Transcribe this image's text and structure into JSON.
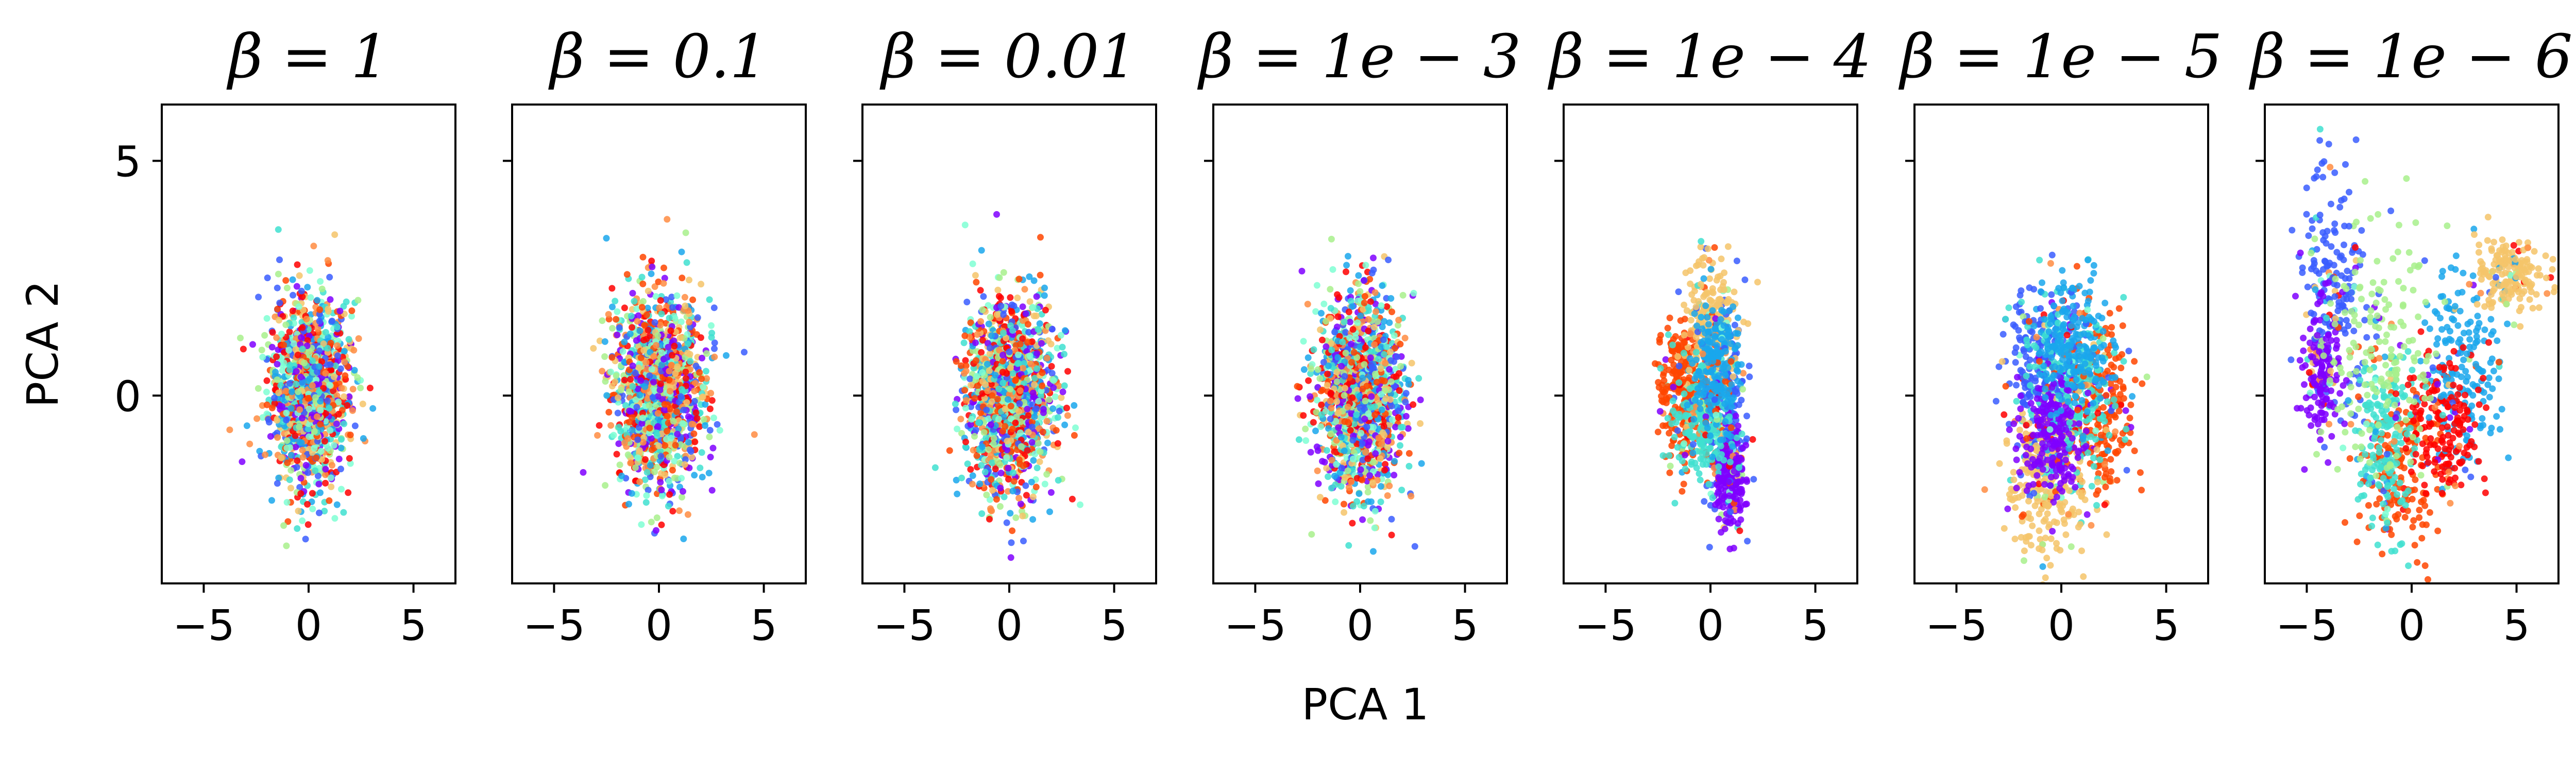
{
  "chart_data": {
    "type": "scatter",
    "xlabel": "PCA 1",
    "ylabel": "PCA 2",
    "xlim": [
      -7.0,
      7.0
    ],
    "ylim": [
      -4.0,
      6.2
    ],
    "xticks": [
      "−5",
      "0",
      "5"
    ],
    "xtick_values": [
      -5,
      0,
      5
    ],
    "yticks": [
      "5",
      "0"
    ],
    "ytick_values": [
      5,
      0
    ],
    "color_scheme": "rainbow",
    "color_palette": [
      "#7f00ff",
      "#3a5dff",
      "#1aa7ec",
      "#40e0d0",
      "#7fffd4",
      "#a8f08c",
      "#f5c46a",
      "#ff8c42",
      "#ff4500",
      "#ff0000"
    ],
    "panels": [
      {
        "title": "β = 1",
        "clusters": [
          {
            "color": "mixed",
            "cx": 0.0,
            "cy": 0.1,
            "sx": 1.1,
            "sy": 1.15
          }
        ]
      },
      {
        "title": "β = 0.1",
        "clusters": [
          {
            "color": "mixed",
            "cx": 0.0,
            "cy": 0.1,
            "sx": 1.25,
            "sy": 1.2
          }
        ]
      },
      {
        "title": "β = 0.01",
        "clusters": [
          {
            "color": "mixed",
            "cx": 0.0,
            "cy": 0.0,
            "sx": 1.25,
            "sy": 1.2
          }
        ]
      },
      {
        "title": "β = 1e − 3",
        "clusters": [
          {
            "color": "mixed",
            "cx": 0.0,
            "cy": 0.0,
            "sx": 1.2,
            "sy": 1.25
          }
        ]
      },
      {
        "title": "β = 1e − 4",
        "clusters": [
          {
            "color": "#ff4500",
            "cx": -1.3,
            "cy": 0.1,
            "sx": 0.75,
            "sy": 0.95
          },
          {
            "color": "#3a5dff",
            "cx": 0.7,
            "cy": -0.5,
            "sx": 0.55,
            "sy": 1.2
          },
          {
            "color": "#7f00ff",
            "cx": 0.9,
            "cy": -1.7,
            "sx": 0.4,
            "sy": 0.6
          },
          {
            "color": "#f5c46a",
            "cx": 0.0,
            "cy": 1.6,
            "sx": 0.8,
            "sy": 0.8
          },
          {
            "color": "#40e0d0",
            "cx": -0.4,
            "cy": -0.6,
            "sx": 0.8,
            "sy": 0.7
          },
          {
            "color": "#1aa7ec",
            "cx": 0.3,
            "cy": 0.6,
            "sx": 0.6,
            "sy": 0.8
          }
        ]
      },
      {
        "title": "β = 1e − 5",
        "clusters": [
          {
            "color": "#3a5dff",
            "cx": -0.8,
            "cy": 0.5,
            "sx": 1.0,
            "sy": 1.1
          },
          {
            "color": "#ff4500",
            "cx": 1.8,
            "cy": -0.3,
            "sx": 1.0,
            "sy": 1.0
          },
          {
            "color": "#40e0d0",
            "cx": 0.2,
            "cy": 0.0,
            "sx": 1.3,
            "sy": 1.2
          },
          {
            "color": "#f5c46a",
            "cx": -0.8,
            "cy": -2.0,
            "sx": 1.2,
            "sy": 0.9
          },
          {
            "color": "#7f00ff",
            "cx": -0.5,
            "cy": -0.8,
            "sx": 0.9,
            "sy": 0.8
          },
          {
            "color": "#1aa7ec",
            "cx": 0.5,
            "cy": 1.2,
            "sx": 1.0,
            "sy": 0.8
          }
        ]
      },
      {
        "title": "β = 1e − 6",
        "clusters": [
          {
            "color": "#3a5dff",
            "cx": -3.8,
            "cy": 2.3,
            "sx": 1.0,
            "sy": 1.6
          },
          {
            "color": "#7f00ff",
            "cx": -4.3,
            "cy": 0.6,
            "sx": 0.5,
            "sy": 0.9
          },
          {
            "color": "#ff4500",
            "cx": -0.6,
            "cy": -1.6,
            "sx": 1.1,
            "sy": 1.1
          },
          {
            "color": "#40e0d0",
            "cx": -1.2,
            "cy": -1.0,
            "sx": 0.8,
            "sy": 1.2
          },
          {
            "color": "#1aa7ec",
            "cx": 2.6,
            "cy": 0.6,
            "sx": 1.0,
            "sy": 1.3
          },
          {
            "color": "#ff0000",
            "cx": 1.5,
            "cy": -0.7,
            "sx": 1.0,
            "sy": 0.8
          },
          {
            "color": "#a8f08c",
            "cx": -1.5,
            "cy": 1.0,
            "sx": 1.5,
            "sy": 1.5
          },
          {
            "color": "#f5c46a",
            "cx": 4.6,
            "cy": 2.6,
            "sx": 1.0,
            "sy": 0.5
          }
        ]
      }
    ]
  }
}
